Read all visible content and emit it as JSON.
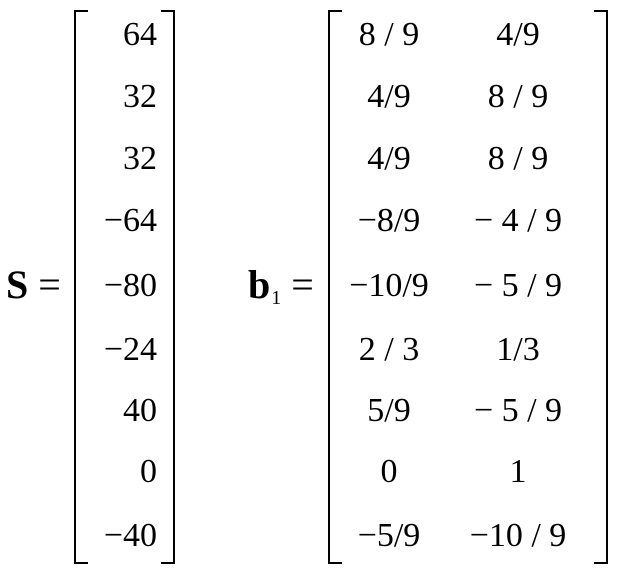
{
  "equation_s": {
    "symbol": "S",
    "equals": "=",
    "values": [
      "64",
      "32",
      "32",
      "−64",
      "−80",
      "−24",
      "40",
      "0",
      "−40"
    ]
  },
  "equation_b1": {
    "symbol": "b",
    "subscript": "1",
    "equals": "=",
    "rows": [
      [
        "8 / 9",
        "4/9"
      ],
      [
        "4/9",
        "8 / 9"
      ],
      [
        "4/9",
        "8 / 9"
      ],
      [
        "−8/9",
        "− 4 / 9"
      ],
      [
        "−10/9",
        "− 5 / 9"
      ],
      [
        "2 / 3",
        "1/3"
      ],
      [
        "5/9",
        "− 5 / 9"
      ],
      [
        "0",
        "1"
      ],
      [
        "−5/9",
        "−10 / 9"
      ]
    ]
  }
}
